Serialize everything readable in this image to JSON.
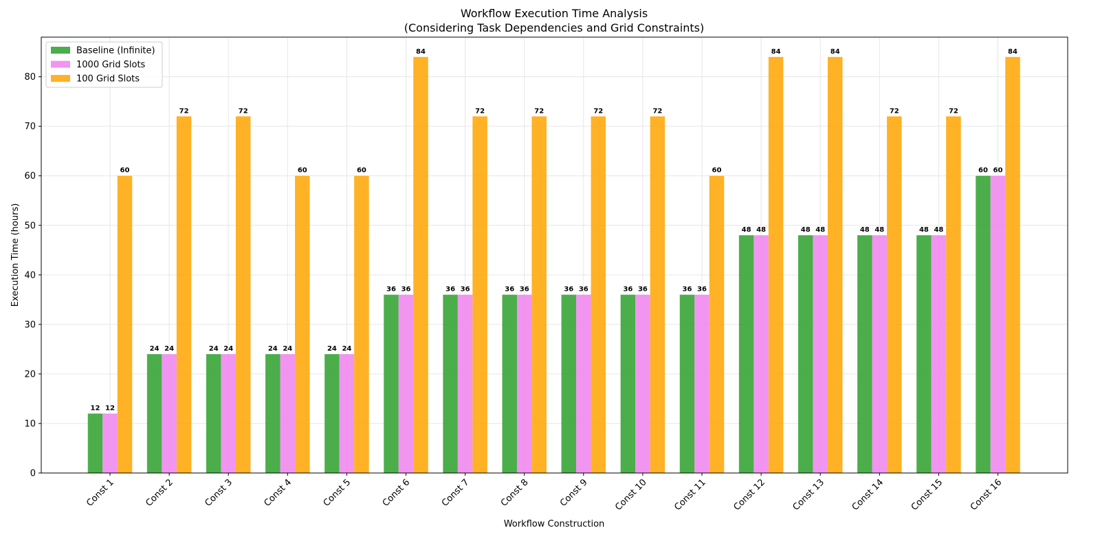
{
  "chart_data": {
    "type": "bar",
    "title": "Workflow Execution Time Analysis",
    "subtitle": "(Considering Task Dependencies and Grid Constraints)",
    "xlabel": "Workflow Construction",
    "ylabel": "Execution Time (hours)",
    "ylim": [
      0,
      88
    ],
    "yticks": [
      0,
      10,
      20,
      30,
      40,
      50,
      60,
      70,
      80
    ],
    "grid": true,
    "legend_position": "top-left",
    "categories": [
      "Const 1",
      "Const 2",
      "Const 3",
      "Const 4",
      "Const 5",
      "Const 6",
      "Const 7",
      "Const 8",
      "Const 9",
      "Const 10",
      "Const 11",
      "Const 12",
      "Const 13",
      "Const 14",
      "Const 15",
      "Const 16"
    ],
    "series": [
      {
        "name": "Baseline (Infinite)",
        "color": "#2ca02c",
        "values": [
          12,
          24,
          24,
          24,
          24,
          36,
          36,
          36,
          36,
          36,
          36,
          48,
          48,
          48,
          48,
          60
        ]
      },
      {
        "name": "1000 Grid Slots",
        "color": "#ee82ee",
        "values": [
          12,
          24,
          24,
          24,
          24,
          36,
          36,
          36,
          36,
          36,
          36,
          48,
          48,
          48,
          48,
          60
        ]
      },
      {
        "name": "100 Grid Slots",
        "color": "#ffa500",
        "values": [
          60,
          72,
          72,
          60,
          60,
          84,
          72,
          72,
          72,
          72,
          60,
          84,
          84,
          72,
          72,
          84
        ]
      }
    ]
  }
}
